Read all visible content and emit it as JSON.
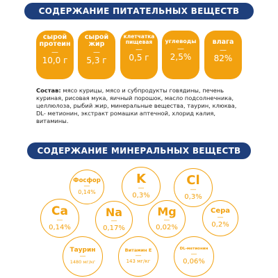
{
  "nutrients_title": "СОДЕРЖАНИЕ ПИТАТЕЛЬНЫХ ВЕЩЕСТВ",
  "nutrients": [
    {
      "label_line1": "сырой",
      "label_line2": "протеин",
      "dash": "—",
      "value": "10,0 г"
    },
    {
      "label_line1": "сырой",
      "label_line2": "жир",
      "dash": "—",
      "value": "5,3 г"
    },
    {
      "label_line1": "клетчатка",
      "label_line2": "пищевая",
      "dash": "—",
      "value": "0,5 г"
    },
    {
      "label_line1": "углеводы",
      "label_line2": "",
      "dash": "—",
      "value": "2,5%"
    },
    {
      "label_line1": "влага",
      "label_line2": "",
      "dash": "—",
      "value": "82%"
    }
  ],
  "composition": {
    "label": "Состав:",
    "text": " мясо курицы, мясо и субпродукты говядины, печень куриная, рисовая мука, яичный порошок, масло подсолнечника, целлюлоза, рыбий жир, минеральные вещества, таурин, клюква, DL- метионин, экстракт ромашки аптечной, хлорид калия, витамины."
  },
  "minerals_title": "СОДЕРЖАНИЕ МИНЕРАЛЬНЫХ ВЕЩЕСТВ",
  "minerals": [
    {
      "name": "Фосфор",
      "dash": "—",
      "value": "0,14%"
    },
    {
      "name": "K",
      "dash": "—",
      "value": "0,3%"
    },
    {
      "name": "Cl",
      "dash": "—",
      "value": "0,3%"
    },
    {
      "name": "Ca",
      "dash": "—",
      "value": "0,14%"
    },
    {
      "name": "Na",
      "dash": "—",
      "value": "0,17%"
    },
    {
      "name": "Mg",
      "dash": "—",
      "value": "0,02%"
    },
    {
      "name": "Сера",
      "dash": "—",
      "value": "0,2%"
    },
    {
      "name": "Таурин",
      "dash": "—",
      "value": "1480 мг/кг"
    },
    {
      "name": "Витамин Е",
      "dash": "—",
      "value": "143 мг/кг"
    },
    {
      "name": "DL-метионин",
      "dash": "—",
      "value": "0,06%"
    }
  ],
  "colors": {
    "accent": "#f2a10f",
    "banner": "#1e3f7c"
  }
}
